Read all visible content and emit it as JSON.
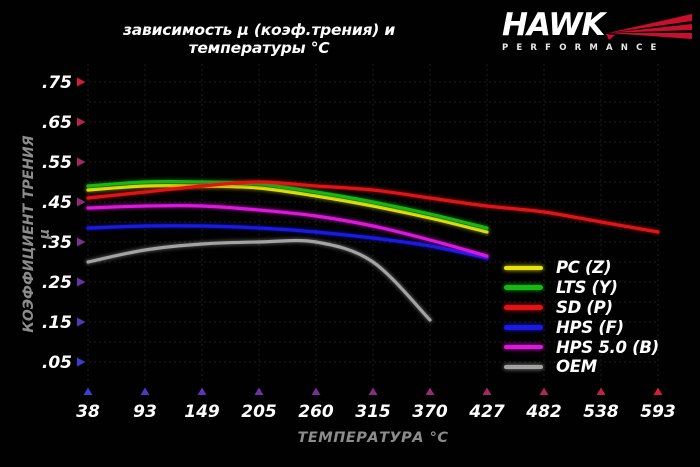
{
  "title": "зависимость μ (коэф.трения) и температуры °C",
  "logo": {
    "brand": "HAWK",
    "subtitle": "PERFORMANCE",
    "flag_color": "#c8102e"
  },
  "chart_data": {
    "type": "line",
    "title": "зависимость μ (коэф.трения) и температуры °C",
    "xlabel": "ТЕМПЕРАТУРА °C",
    "ylabel": "КОЭФФИЦИЕНТ ТРЕНИЯ μ",
    "x_ticks": [
      38,
      93,
      149,
      205,
      260,
      315,
      370,
      427,
      482,
      538,
      593
    ],
    "y_ticks": [
      0.05,
      0.15,
      0.25,
      0.35,
      0.45,
      0.55,
      0.65,
      0.75
    ],
    "y_tick_labels": [
      ".05",
      ".15",
      ".25",
      ".35",
      ".45",
      ".55",
      ".65",
      ".75"
    ],
    "ylim": [
      0,
      0.78
    ],
    "grid": {
      "horizontal_step": 0.05,
      "vertical": "every temperature tick",
      "style": "dotted dark gray"
    },
    "legend_position": "inside-bottom-right",
    "axis_gradient": {
      "cold": "#3c3cd2",
      "hot": "#d21e36"
    },
    "series": [
      {
        "name": "PC (Z)",
        "color": "#e8e20e",
        "x": [
          38,
          93,
          149,
          205,
          260,
          315,
          370,
          427
        ],
        "values": [
          0.48,
          0.49,
          0.49,
          0.485,
          0.465,
          0.44,
          0.41,
          0.375
        ]
      },
      {
        "name": "LTS (Y)",
        "color": "#15b815",
        "x": [
          38,
          93,
          149,
          205,
          260,
          315,
          370,
          427
        ],
        "values": [
          0.49,
          0.5,
          0.5,
          0.495,
          0.475,
          0.45,
          0.42,
          0.385
        ]
      },
      {
        "name": "SD (P)",
        "color": "#e01414",
        "x": [
          38,
          93,
          149,
          205,
          260,
          315,
          370,
          427,
          482,
          538,
          593
        ],
        "values": [
          0.46,
          0.475,
          0.49,
          0.5,
          0.49,
          0.48,
          0.46,
          0.44,
          0.425,
          0.4,
          0.375
        ]
      },
      {
        "name": "HPS (F)",
        "color": "#1a1ae6",
        "x": [
          38,
          93,
          149,
          205,
          260,
          315,
          370,
          427
        ],
        "values": [
          0.385,
          0.39,
          0.39,
          0.385,
          0.375,
          0.36,
          0.34,
          0.31
        ]
      },
      {
        "name": "HPS 5.0 (B)",
        "color": "#de16de",
        "x": [
          38,
          93,
          149,
          205,
          260,
          315,
          370,
          427
        ],
        "values": [
          0.435,
          0.44,
          0.44,
          0.43,
          0.415,
          0.39,
          0.355,
          0.315
        ]
      },
      {
        "name": "OEM",
        "color": "#a3a3a3",
        "x": [
          38,
          93,
          149,
          205,
          260,
          315,
          370
        ],
        "values": [
          0.3,
          0.33,
          0.345,
          0.35,
          0.35,
          0.3,
          0.155
        ]
      }
    ]
  }
}
